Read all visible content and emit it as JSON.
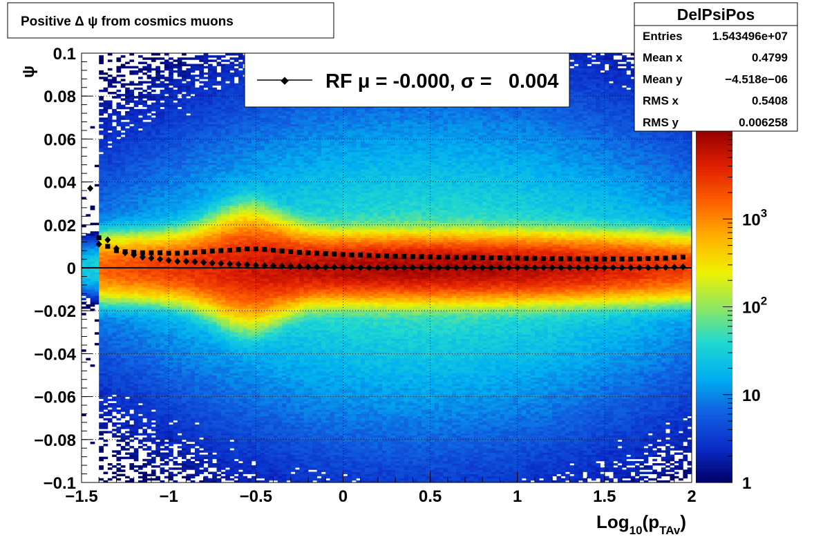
{
  "chart_data": {
    "type": "heatmap",
    "title": "Positive Δ ψ from cosmics muons",
    "xlabel": {
      "base": "Log",
      "sub1": "10",
      "open": "(p",
      "sub2": "TAv",
      "close": ")"
    },
    "ylabel": "ψ",
    "xlim": [
      -1.5,
      2.0
    ],
    "ylim": [
      -0.1,
      0.1
    ],
    "grid": true,
    "x_ticks": [
      {
        "value": -1.5,
        "label": "−1.5"
      },
      {
        "value": -1.0,
        "label": "−1"
      },
      {
        "value": -0.5,
        "label": "−0.5"
      },
      {
        "value": 0.0,
        "label": "0"
      },
      {
        "value": 0.5,
        "label": "0.5"
      },
      {
        "value": 1.0,
        "label": "1"
      },
      {
        "value": 1.5,
        "label": "1.5"
      },
      {
        "value": 2.0,
        "label": "2"
      }
    ],
    "y_ticks": [
      {
        "value": 0.1,
        "label": "0.1"
      },
      {
        "value": 0.08,
        "label": "0.08"
      },
      {
        "value": 0.06,
        "label": "0.06"
      },
      {
        "value": 0.04,
        "label": "0.04"
      },
      {
        "value": 0.02,
        "label": "0.02"
      },
      {
        "value": 0.0,
        "label": "0"
      },
      {
        "value": -0.02,
        "label": "−0.02"
      },
      {
        "value": -0.04,
        "label": "−0.04"
      },
      {
        "value": -0.06,
        "label": "−0.06"
      },
      {
        "value": -0.08,
        "label": "−0.08"
      },
      {
        "value": -0.1,
        "label": "−0.1"
      }
    ],
    "color_scale": {
      "type": "log",
      "range": [
        1,
        10000
      ],
      "ticks": [
        {
          "value": 1,
          "base": "1",
          "exp": ""
        },
        {
          "value": 10,
          "base": "10",
          "exp": ""
        },
        {
          "value": 100,
          "base": "10",
          "exp": "2"
        },
        {
          "value": 1000,
          "base": "10",
          "exp": "3"
        }
      ],
      "colors": [
        "#000064",
        "#0a2cc8",
        "#1060e0",
        "#00b0f0",
        "#20d8d0",
        "#90e860",
        "#f0f000",
        "#ffb000",
        "#ff6000",
        "#e02000",
        "#960000"
      ]
    },
    "legend": {
      "position": "top",
      "marker": "◆",
      "label": "RF μ = -0.000, σ =   0.004"
    },
    "stats_box": {
      "title": "DelPsiPos",
      "rows": [
        {
          "label": "Entries",
          "value": "1.543496e+07"
        },
        {
          "label": "Mean x",
          "value": "0.4799"
        },
        {
          "label": "Mean y",
          "value": "−4.518e−06"
        },
        {
          "label": "RMS x",
          "value": "0.5408"
        },
        {
          "label": "RMS y",
          "value": "0.006258"
        }
      ]
    },
    "series": [
      {
        "name": "RF",
        "marker": "diamond",
        "x": [
          -1.45,
          -1.4,
          -1.35,
          -1.3,
          -1.25,
          -1.2,
          -1.15,
          -1.1,
          -1.05,
          -1.0,
          -0.95,
          -0.9,
          -0.85,
          -0.8,
          -0.75,
          -0.7,
          -0.65,
          -0.6,
          -0.55,
          -0.5,
          -0.45,
          -0.4,
          -0.35,
          -0.3,
          -0.25,
          -0.2,
          -0.15,
          -0.1,
          -0.05,
          0.0,
          0.05,
          0.1,
          0.15,
          0.2,
          0.25,
          0.3,
          0.35,
          0.4,
          0.45,
          0.5,
          0.55,
          0.6,
          0.65,
          0.7,
          0.75,
          0.8,
          0.85,
          0.9,
          0.95,
          1.0,
          1.05,
          1.1,
          1.15,
          1.2,
          1.25,
          1.3,
          1.35,
          1.4,
          1.45,
          1.5,
          1.55,
          1.6,
          1.65,
          1.7,
          1.75,
          1.8,
          1.85,
          1.9,
          1.95
        ],
        "y": [
          0.037,
          0.011,
          0.013,
          0.009,
          0.007,
          0.006,
          0.005,
          0.0045,
          0.004,
          0.0035,
          0.003,
          0.003,
          0.0028,
          0.0025,
          0.0022,
          0.002,
          0.0018,
          0.0016,
          0.0014,
          0.0012,
          0.001,
          0.0009,
          0.0008,
          0.0007,
          0.0006,
          0.0005,
          0.0004,
          0.0003,
          0.0003,
          0.0002,
          0.0002,
          0.0001,
          0.0001,
          0.0001,
          0.0001,
          0.0001,
          0.0001,
          0.0001,
          0.0001,
          0.0001,
          0.0001,
          0.0001,
          0.0001,
          0.0001,
          0.0001,
          0.0001,
          0.0001,
          0.0001,
          0.0001,
          0.0001,
          0.0001,
          0.0001,
          0.0001,
          0.0001,
          0.0001,
          0.0001,
          0.0001,
          0.0001,
          0.0001,
          0.0001,
          0.0001,
          0.0001,
          0.0001,
          0.0001,
          0.0001,
          0.0002,
          0.0002,
          0.0003,
          0.0004
        ]
      },
      {
        "name": "",
        "marker": "square",
        "x": [
          -1.4,
          -1.35,
          -1.3,
          -1.25,
          -1.2,
          -1.15,
          -1.1,
          -1.05,
          -1.0,
          -0.95,
          -0.9,
          -0.85,
          -0.8,
          -0.75,
          -0.7,
          -0.65,
          -0.6,
          -0.55,
          -0.5,
          -0.45,
          -0.4,
          -0.35,
          -0.3,
          -0.25,
          -0.2,
          -0.15,
          -0.1,
          -0.05,
          0.0,
          0.05,
          0.1,
          0.15,
          0.2,
          0.25,
          0.3,
          0.35,
          0.4,
          0.45,
          0.5,
          0.55,
          0.6,
          0.65,
          0.7,
          0.75,
          0.8,
          0.85,
          0.9,
          0.95,
          1.0,
          1.05,
          1.1,
          1.15,
          1.2,
          1.25,
          1.3,
          1.35,
          1.4,
          1.45,
          1.5,
          1.55,
          1.6,
          1.65,
          1.7,
          1.75,
          1.8,
          1.85,
          1.9,
          1.95
        ],
        "y": [
          0.014,
          0.01,
          0.008,
          0.0075,
          0.0072,
          0.007,
          0.007,
          0.007,
          0.0068,
          0.0068,
          0.007,
          0.0072,
          0.0075,
          0.0078,
          0.008,
          0.0082,
          0.0085,
          0.0088,
          0.0088,
          0.0086,
          0.0082,
          0.0078,
          0.0075,
          0.0072,
          0.007,
          0.0068,
          0.0066,
          0.0064,
          0.0062,
          0.006,
          0.006,
          0.0058,
          0.0056,
          0.0055,
          0.0054,
          0.0053,
          0.0052,
          0.0052,
          0.0051,
          0.005,
          0.005,
          0.0049,
          0.0048,
          0.0048,
          0.0047,
          0.0046,
          0.0046,
          0.0045,
          0.0045,
          0.0044,
          0.0044,
          0.0043,
          0.0043,
          0.0042,
          0.0042,
          0.0042,
          0.0041,
          0.0041,
          0.0041,
          0.0041,
          0.0041,
          0.0041,
          0.0042,
          0.0043,
          0.0044,
          0.0045,
          0.0048,
          0.005
        ]
      }
    ],
    "fit_line": {
      "y": 0.0
    },
    "density": {
      "core_halfwidth_y": 0.0063,
      "peak_x": 0.45,
      "peak_count": 8000
    }
  }
}
